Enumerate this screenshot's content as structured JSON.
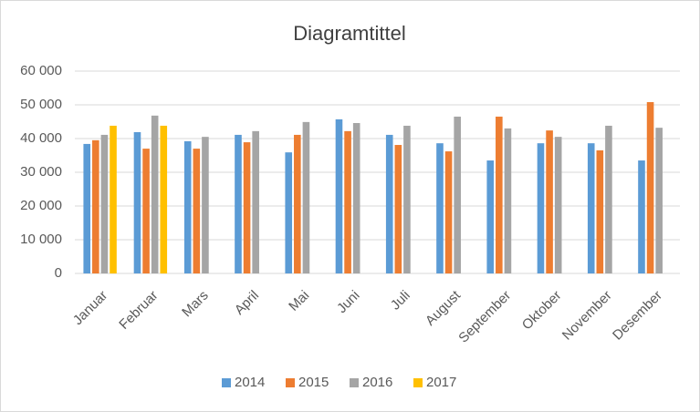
{
  "chart_data": {
    "type": "bar",
    "title": "Diagramtittel",
    "categories": [
      "Januar",
      "Februar",
      "Mars",
      "April",
      "Mai",
      "Juni",
      "Juli",
      "August",
      "September",
      "Oktober",
      "November",
      "Desember"
    ],
    "series": [
      {
        "name": "2014",
        "color": "#5b9bd5",
        "values": [
          38400,
          41900,
          39200,
          41100,
          35900,
          45700,
          41100,
          38600,
          33500,
          38600,
          38600,
          33500
        ]
      },
      {
        "name": "2015",
        "color": "#ed7d31",
        "values": [
          39500,
          37000,
          37000,
          38900,
          41100,
          42200,
          38100,
          36200,
          46500,
          42400,
          36500,
          50800
        ]
      },
      {
        "name": "2016",
        "color": "#a5a5a5",
        "values": [
          41100,
          46800,
          40500,
          42200,
          44900,
          44600,
          43800,
          46500,
          43000,
          40500,
          43800,
          43200
        ]
      },
      {
        "name": "2017",
        "color": "#ffc000",
        "values": [
          43800,
          43800,
          null,
          null,
          null,
          null,
          null,
          null,
          null,
          null,
          null,
          null
        ]
      }
    ],
    "ylim": [
      0,
      60000
    ],
    "yticks": [
      0,
      {
        "value": 10000,
        "label": "10 000"
      },
      {
        "value": 20000,
        "label": "20 000"
      },
      {
        "value": 30000,
        "label": "30 000"
      },
      {
        "value": 40000,
        "label": "40 000"
      },
      {
        "value": 50000,
        "label": "50 000"
      },
      {
        "value": 60000,
        "label": "60 000"
      }
    ],
    "grid": true,
    "legend": "bottom"
  }
}
